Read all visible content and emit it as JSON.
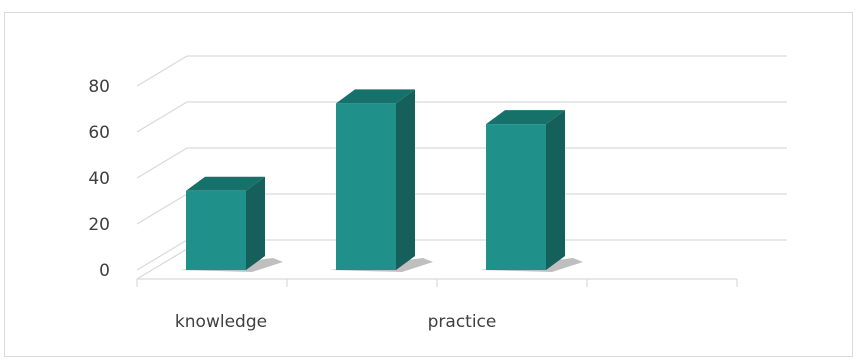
{
  "chart_data": {
    "type": "bar",
    "categories": [
      "knowledge",
      "",
      "practice"
    ],
    "values": [
      34,
      72,
      63
    ],
    "y_ticks": [
      "0",
      "20",
      "40",
      "60",
      "80"
    ],
    "ylim": [
      0,
      80
    ],
    "title": "",
    "xlabel": "",
    "ylabel": "",
    "legend": "none",
    "grid": true,
    "bar_color": "#20908a",
    "bar_side_color": "#15605b",
    "bar_top_color": "#17716b",
    "grid_color": "#d9d9d9"
  }
}
